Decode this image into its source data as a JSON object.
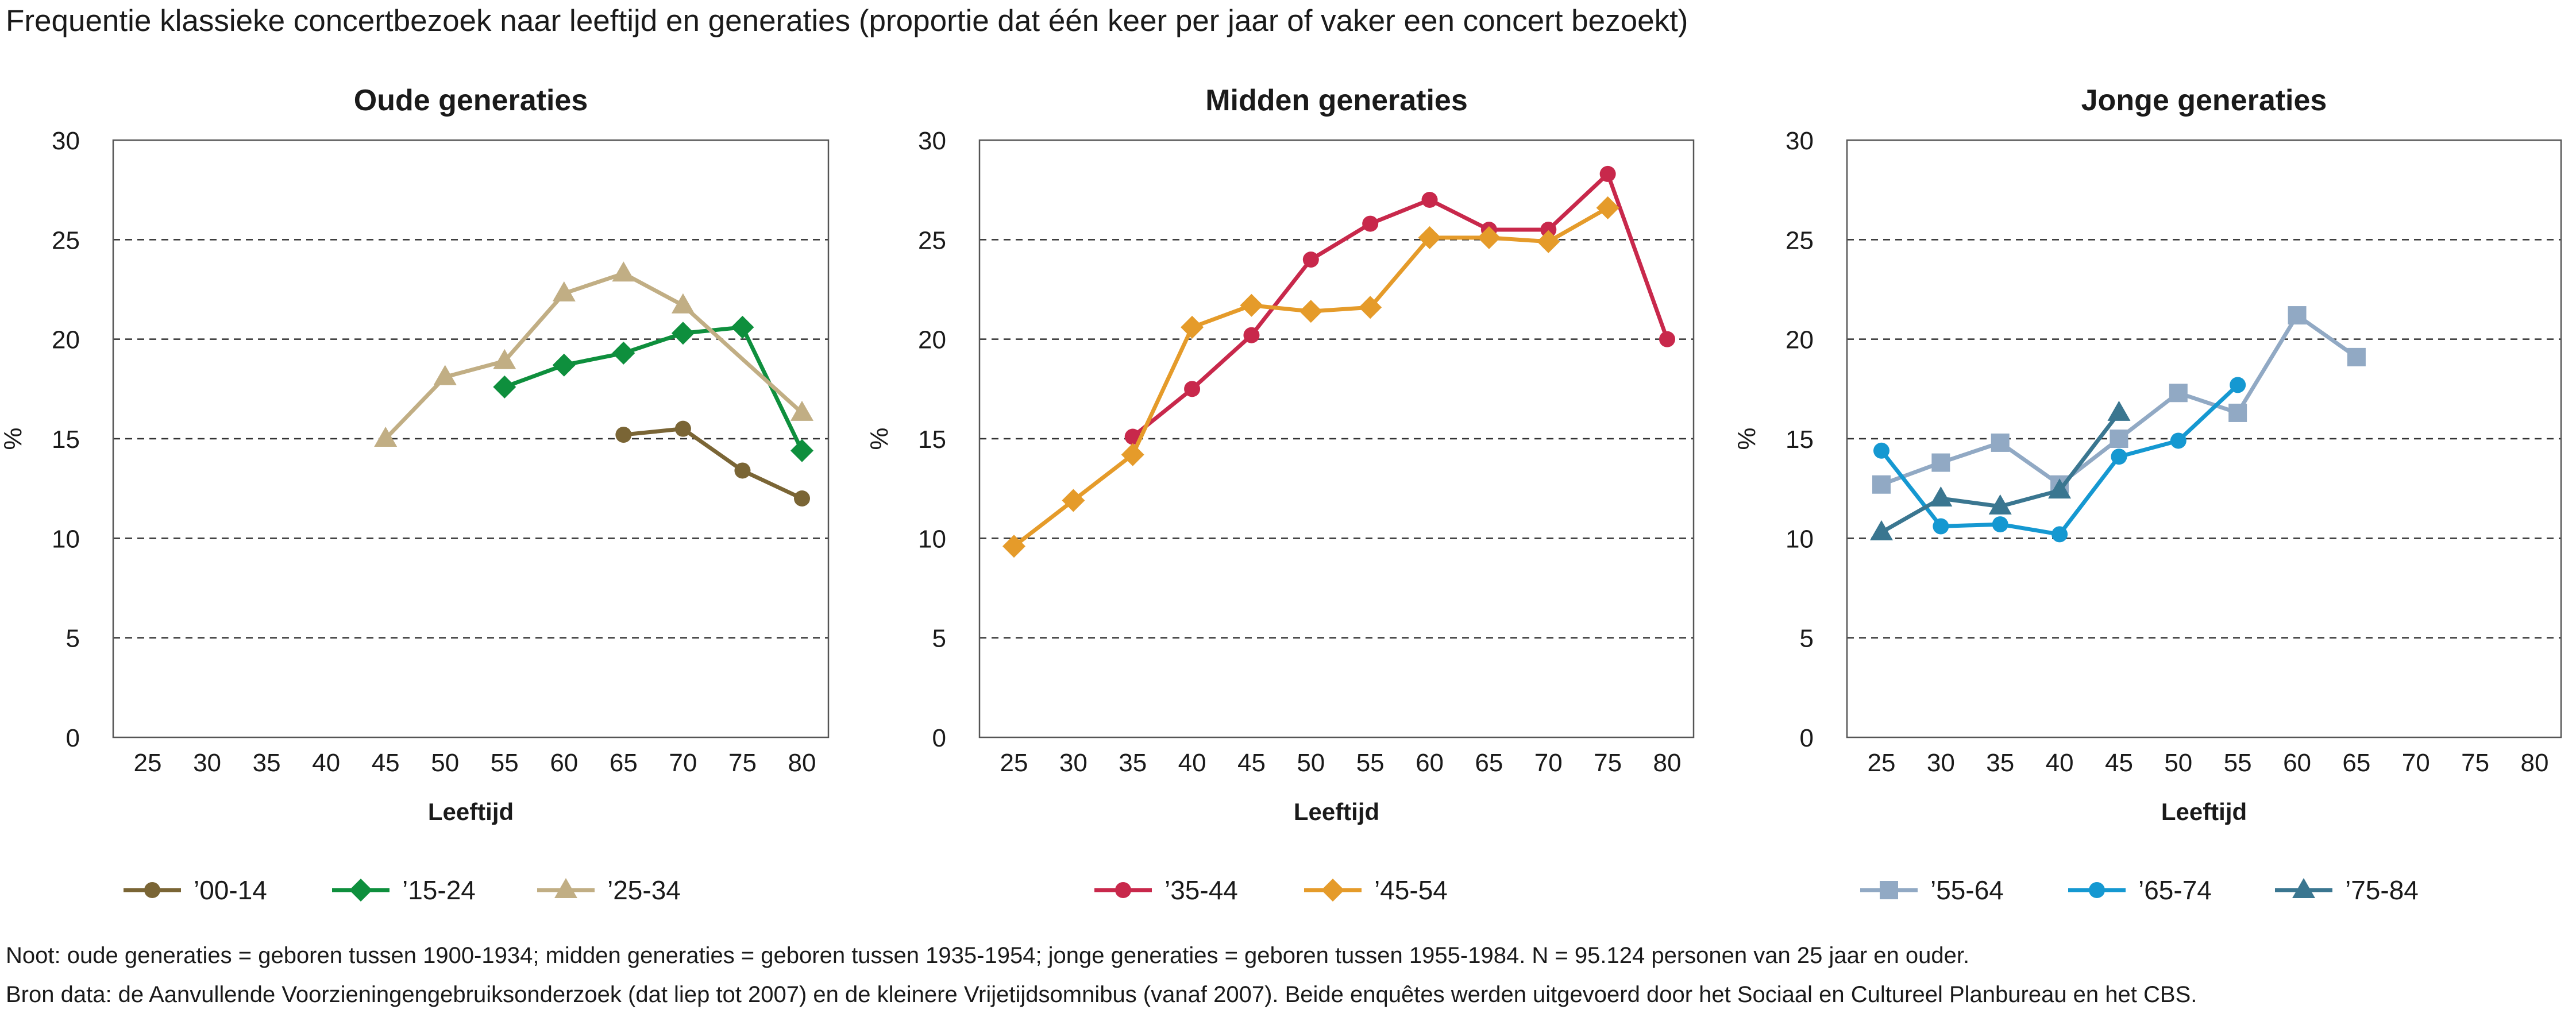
{
  "title": "Frequentie klassieke concertbezoek naar leeftijd en generaties (proportie dat één keer per jaar of vaker een concert bezoekt)",
  "notes": {
    "note": "Noot: oude generaties = geboren tussen 1900-1934; midden generaties = geboren tussen 1935-1954; jonge generaties = geboren tussen 1955-1984. N = 95.124 personen van 25 jaar en ouder.",
    "source": "Bron data: de Aanvullende Voorzieningengebruiksonderzoek (dat liep tot 2007) en de kleinere Vrijetijdsomnibus (vanaf 2007). Beide enquêtes werden uitgevoerd door het Sociaal en Cultureel Planbureau en het CBS."
  },
  "chart_data": [
    {
      "type": "line",
      "title": "Oude generaties",
      "xlabel": "Leeftijd",
      "ylabel": "%",
      "x_ticks": [
        25,
        30,
        35,
        40,
        45,
        50,
        55,
        60,
        65,
        70,
        75,
        80
      ],
      "y_ticks": [
        0,
        5,
        10,
        15,
        20,
        25,
        30
      ],
      "xlim": [
        25,
        80
      ],
      "ylim": [
        0,
        30
      ],
      "grid": "horizontal dashed",
      "legend_position": "bottom",
      "series": [
        {
          "name": "’00-14",
          "color": "#7a6535",
          "marker": "circle",
          "x": [
            65,
            70,
            75,
            80
          ],
          "values": [
            15.2,
            15.5,
            13.4,
            12.0
          ]
        },
        {
          "name": "’15-24",
          "color": "#0e8f3d",
          "marker": "diamond",
          "x": [
            55,
            60,
            65,
            70,
            75,
            80
          ],
          "values": [
            17.6,
            18.7,
            19.3,
            20.3,
            20.6,
            14.4
          ]
        },
        {
          "name": "’25-34",
          "color": "#c1ae84",
          "marker": "triangle",
          "x": [
            45,
            50,
            55,
            60,
            65,
            70,
            80
          ],
          "values": [
            15.0,
            18.1,
            18.9,
            22.3,
            23.3,
            21.7,
            16.3
          ]
        }
      ]
    },
    {
      "type": "line",
      "title": "Midden generaties",
      "xlabel": "Leeftijd",
      "ylabel": "%",
      "x_ticks": [
        25,
        30,
        35,
        40,
        45,
        50,
        55,
        60,
        65,
        70,
        75,
        80
      ],
      "y_ticks": [
        0,
        5,
        10,
        15,
        20,
        25,
        30
      ],
      "xlim": [
        25,
        80
      ],
      "ylim": [
        0,
        30
      ],
      "grid": "horizontal dashed",
      "legend_position": "bottom",
      "series": [
        {
          "name": "’35-44",
          "color": "#c8284b",
          "marker": "circle",
          "x": [
            35,
            40,
            45,
            50,
            55,
            60,
            65,
            70,
            75,
            80
          ],
          "values": [
            15.1,
            17.5,
            20.2,
            24.0,
            25.8,
            27.0,
            25.5,
            25.5,
            28.3,
            20.0
          ]
        },
        {
          "name": "’45-54",
          "color": "#e59b2a",
          "marker": "diamond",
          "x": [
            25,
            30,
            35,
            40,
            45,
            50,
            55,
            60,
            65,
            70,
            75
          ],
          "values": [
            9.6,
            11.9,
            14.2,
            20.6,
            21.7,
            21.4,
            21.6,
            25.1,
            25.1,
            24.9,
            26.6
          ]
        }
      ]
    },
    {
      "type": "line",
      "title": "Jonge generaties",
      "xlabel": "Leeftijd",
      "ylabel": "%",
      "x_ticks": [
        25,
        30,
        35,
        40,
        45,
        50,
        55,
        60,
        65,
        70,
        75,
        80
      ],
      "y_ticks": [
        0,
        5,
        10,
        15,
        20,
        25,
        30
      ],
      "xlim": [
        25,
        80
      ],
      "ylim": [
        0,
        30
      ],
      "grid": "horizontal dashed",
      "legend_position": "bottom",
      "series": [
        {
          "name": "’55-64",
          "color": "#91a9c4",
          "marker": "square",
          "x": [
            25,
            30,
            35,
            40,
            45,
            50,
            55,
            60,
            65
          ],
          "values": [
            12.7,
            13.8,
            14.8,
            12.7,
            15.0,
            17.3,
            16.3,
            21.2,
            19.1
          ]
        },
        {
          "name": "’65-74",
          "color": "#1598d1",
          "marker": "circle",
          "x": [
            25,
            30,
            35,
            40,
            45,
            50,
            55
          ],
          "values": [
            14.4,
            10.6,
            10.7,
            10.2,
            14.1,
            14.9,
            17.7
          ]
        },
        {
          "name": "’75-84",
          "color": "#3a7690",
          "marker": "triangle",
          "x": [
            25,
            30,
            35,
            40,
            45
          ],
          "values": [
            10.3,
            12.0,
            11.6,
            12.4,
            16.3
          ]
        }
      ]
    }
  ]
}
